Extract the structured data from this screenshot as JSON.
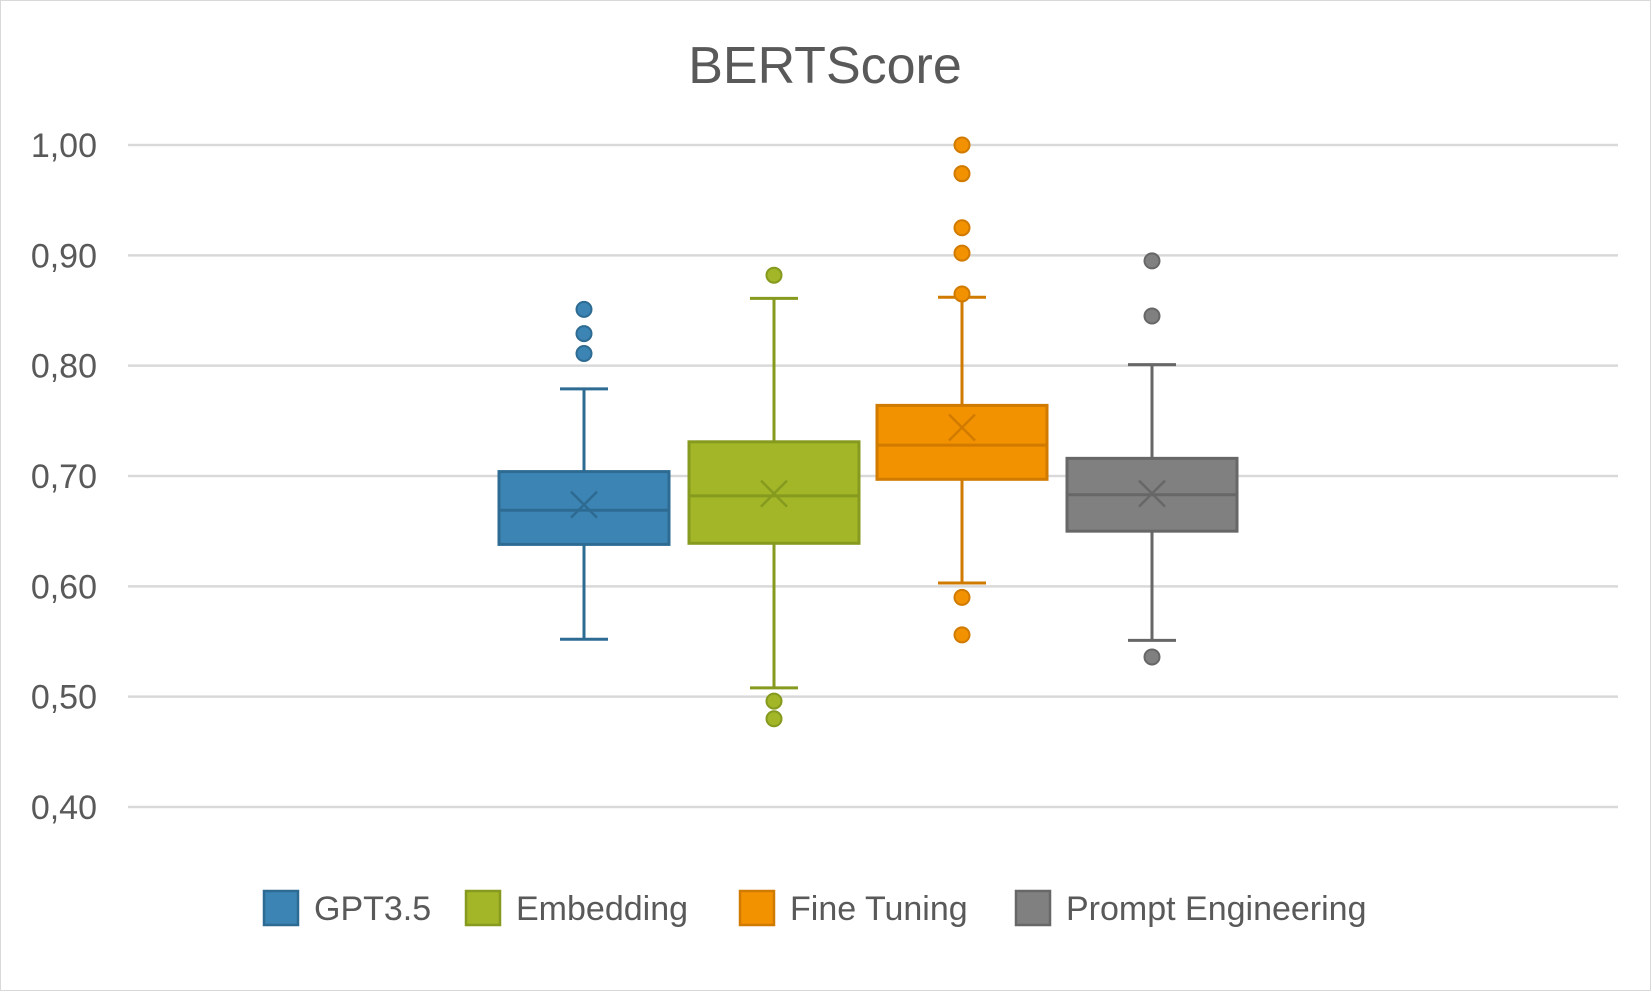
{
  "chart_data": {
    "type": "box",
    "title": "BERTScore",
    "xlabel": "",
    "ylabel": "",
    "ylim": [
      0.4,
      1.0
    ],
    "yticks": [
      "1,00",
      "0,90",
      "0,80",
      "0,70",
      "0,60",
      "0,50",
      "0,40"
    ],
    "ytick_values": [
      1.0,
      0.9,
      0.8,
      0.7,
      0.6,
      0.5,
      0.4
    ],
    "grid": true,
    "legend_position": "bottom",
    "series": [
      {
        "name": "GPT3.5",
        "color": "#3b84b3",
        "stroke": "#2e6b93",
        "whisker_low": 0.552,
        "q1": 0.638,
        "median": 0.669,
        "q3": 0.704,
        "whisker_high": 0.779,
        "mean": 0.674,
        "outliers": [
          0.851,
          0.829,
          0.811
        ]
      },
      {
        "name": "Embedding",
        "color": "#a3b628",
        "stroke": "#859a1e",
        "whisker_low": 0.508,
        "q1": 0.639,
        "median": 0.682,
        "q3": 0.731,
        "whisker_high": 0.861,
        "mean": 0.684,
        "outliers": [
          0.882,
          0.496,
          0.48
        ]
      },
      {
        "name": "Fine Tuning",
        "color": "#f39200",
        "stroke": "#d07a00",
        "whisker_low": 0.603,
        "q1": 0.697,
        "median": 0.728,
        "q3": 0.764,
        "whisker_high": 0.862,
        "mean": 0.744,
        "outliers": [
          1.0,
          0.974,
          0.925,
          0.902,
          0.865,
          0.59,
          0.556
        ]
      },
      {
        "name": "Prompt Engineering",
        "color": "#808080",
        "stroke": "#676767",
        "whisker_low": 0.551,
        "q1": 0.65,
        "median": 0.683,
        "q3": 0.716,
        "whisker_high": 0.801,
        "mean": 0.684,
        "outliers": [
          0.895,
          0.845,
          0.536
        ]
      }
    ]
  }
}
